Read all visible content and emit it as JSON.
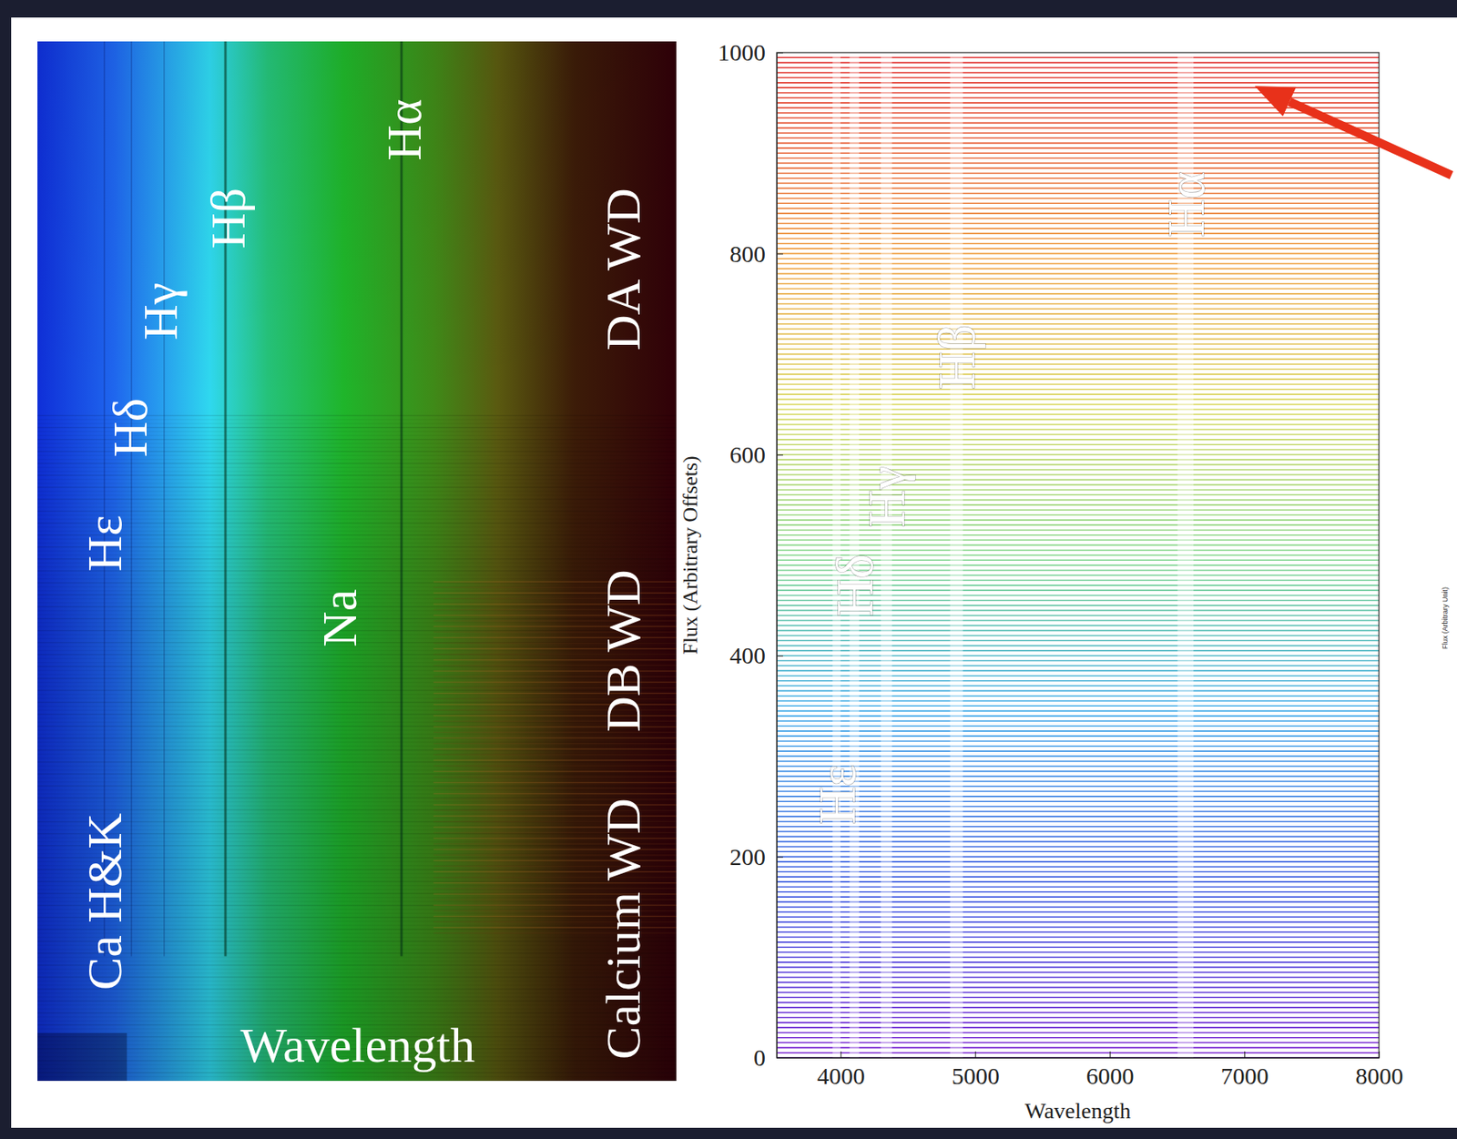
{
  "chart_data": {
    "type": "line",
    "xlabel": "Wavelength",
    "ylabel": "Flux (Arbitrary Offsets)",
    "xlim": [
      3525,
      8000
    ],
    "xticks": [
      4000,
      5000,
      6000,
      7000,
      8000
    ],
    "ylim": [
      0,
      1000
    ],
    "yticks": [
      0,
      200,
      400,
      600,
      800,
      1000
    ],
    "offsets": [
      0,
      5,
      10,
      15,
      20,
      25,
      30,
      35,
      40,
      45,
      50,
      55,
      60,
      65,
      70,
      75,
      80,
      85,
      90,
      95,
      100,
      105,
      110,
      115,
      120,
      125,
      130,
      135,
      140,
      145,
      150,
      155,
      160,
      165,
      170,
      175,
      180,
      185,
      190,
      195,
      200,
      205,
      210,
      215,
      220,
      225,
      230,
      235,
      240,
      245,
      250,
      255,
      260,
      265,
      270,
      275,
      280,
      285,
      290,
      295,
      300,
      305,
      310,
      315,
      320,
      325,
      330,
      335,
      340,
      345,
      350,
      355,
      360,
      365,
      370,
      375,
      380,
      385,
      390,
      395,
      400,
      405,
      410,
      415,
      420,
      425,
      430,
      435,
      440,
      445,
      450,
      455,
      460,
      465,
      470,
      475,
      480,
      485,
      490,
      495,
      500,
      505,
      510,
      515,
      520,
      525,
      530,
      535,
      540,
      545,
      550,
      555,
      560,
      565,
      570,
      575,
      580,
      585,
      590,
      595,
      600,
      605,
      610,
      615,
      620,
      625,
      630,
      635,
      640,
      645,
      650,
      655,
      660,
      665,
      670,
      675,
      680,
      685,
      690,
      695,
      700,
      705,
      710,
      715,
      720,
      725,
      730,
      735,
      740,
      745,
      750,
      755,
      760,
      765,
      770,
      775,
      780,
      785,
      790,
      795,
      800,
      805,
      810,
      815,
      820,
      825,
      830,
      835,
      840,
      845,
      850,
      855,
      860,
      865,
      870,
      875,
      880,
      885,
      890,
      895,
      900,
      905,
      910,
      915,
      920,
      925,
      930,
      935,
      940,
      945,
      950,
      955,
      960,
      965,
      970,
      975,
      980,
      985,
      990,
      995
    ],
    "lines": [
      {
        "label": "Hα",
        "wavelength": 6563
      },
      {
        "label": "Hβ",
        "wavelength": 4861
      },
      {
        "label": "Hγ",
        "wavelength": 4340
      },
      {
        "label": "Hδ",
        "wavelength": 4102
      },
      {
        "label": "Hε",
        "wavelength": 3970
      }
    ]
  },
  "image_panel": {
    "labels": [
      "Ca H&K",
      "Hε",
      "Hδ",
      "Hγ",
      "Hβ",
      "Hα",
      "Na",
      "Calcium WD",
      "DB WD",
      "DA WD"
    ],
    "axis_label": "Wavelength"
  },
  "cropped_panel": {
    "axis_label": "Flux (Arbitrary Unit)"
  }
}
